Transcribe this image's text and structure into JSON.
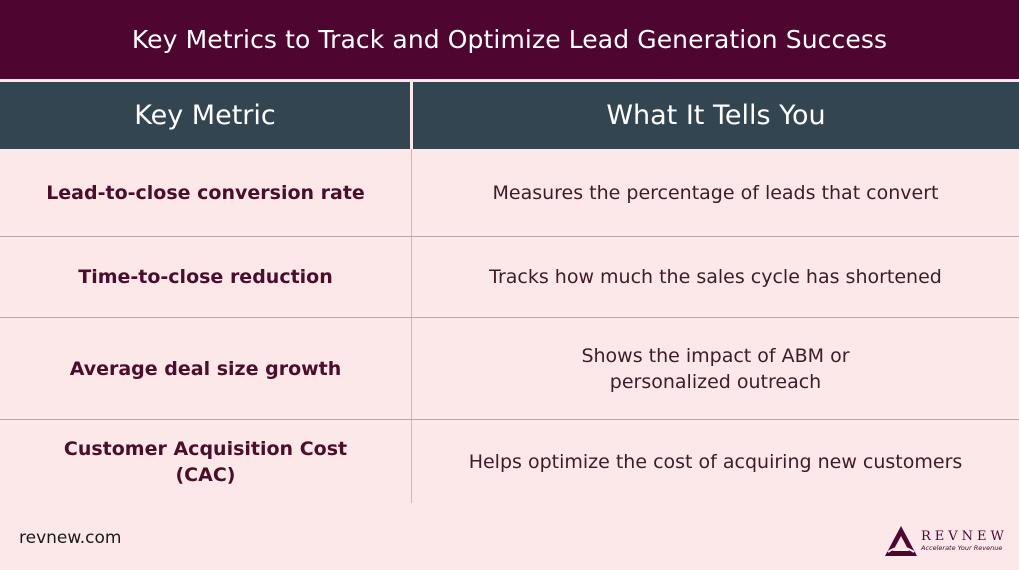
{
  "title": "Key Metrics to Track and Optimize Lead Generation Success",
  "table": {
    "headers": [
      "Key Metric",
      "What It Tells You"
    ],
    "rows": [
      {
        "metric": "Lead-to-close conversion rate",
        "description": "Measures the percentage of leads that convert"
      },
      {
        "metric": "Time-to-close reduction",
        "description": "Tracks how much the sales cycle has shortened"
      },
      {
        "metric": "Average deal size growth",
        "description": "Shows the impact of ABM or\npersonalized outreach"
      },
      {
        "metric": "Customer Acquisition Cost\n(CAC)",
        "description": "Helps optimize the cost of acquiring new customers"
      }
    ]
  },
  "footer": {
    "url": "revnew.com",
    "logo_name": "REVNEW",
    "logo_tagline": "Accelerate Your Revenue"
  },
  "colors": {
    "title_bg": "#4e0530",
    "header_bg": "#334550",
    "body_bg": "#fce8e8"
  }
}
